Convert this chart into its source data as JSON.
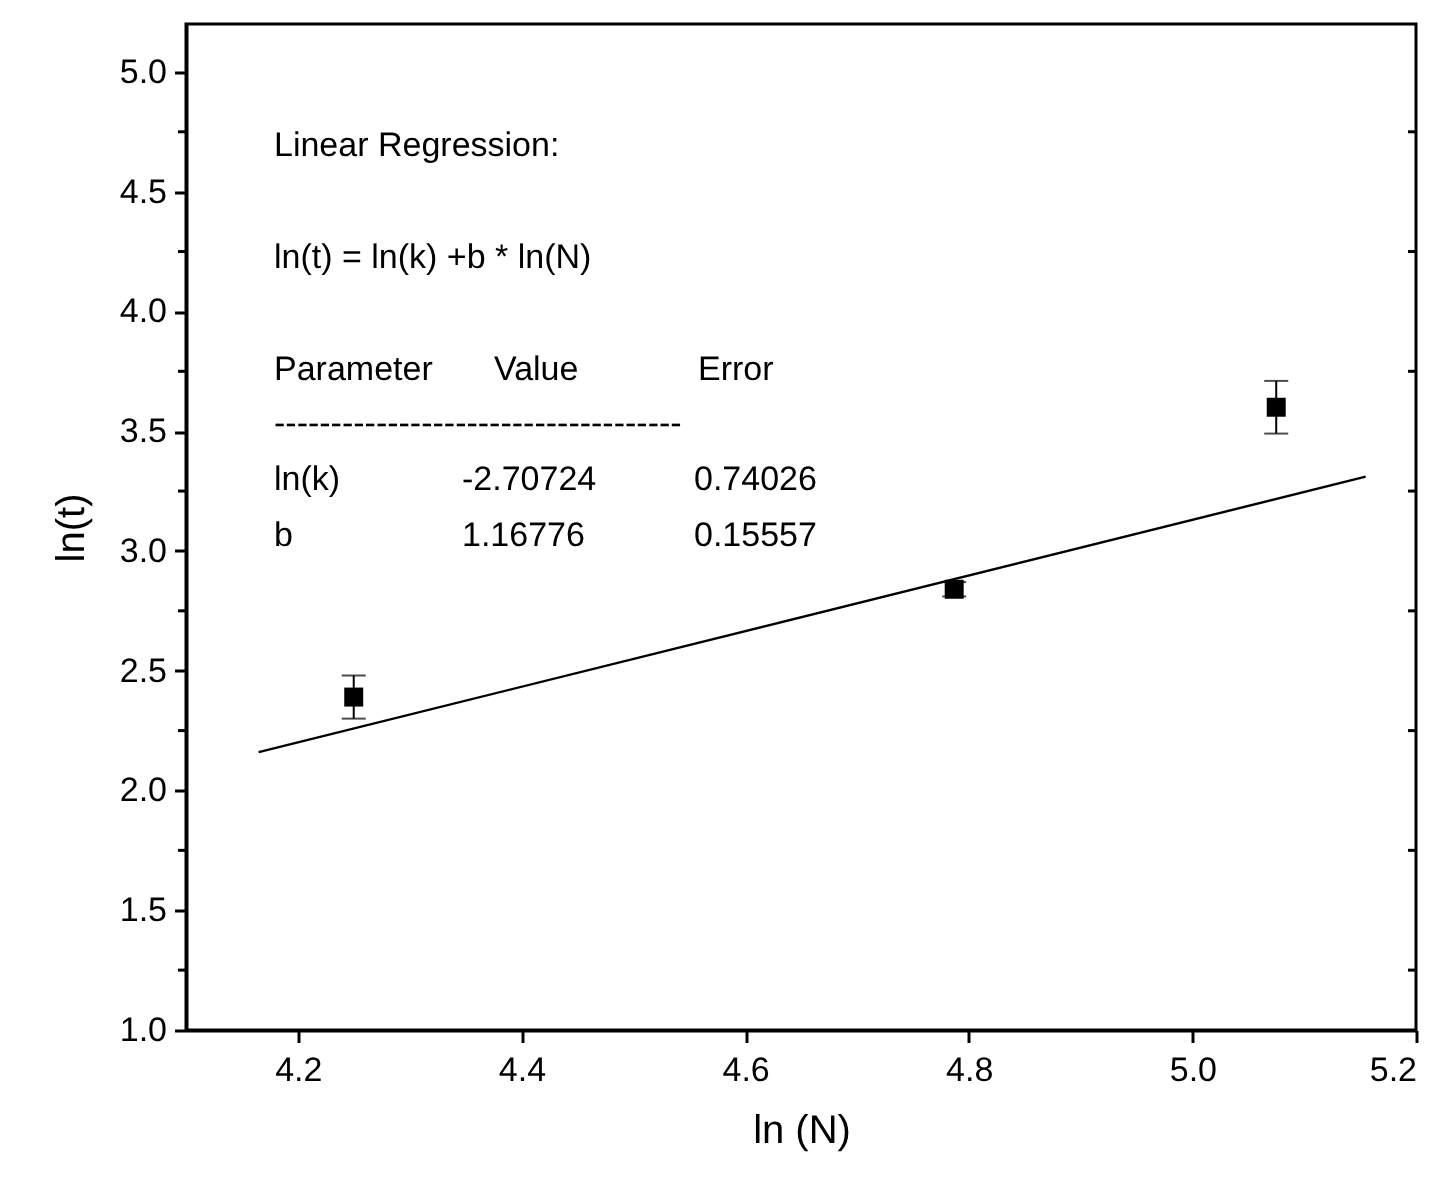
{
  "chart_data": {
    "type": "scatter",
    "xlabel": "ln (N)",
    "ylabel": "ln(t)",
    "xlim": [
      4.1,
      5.2
    ],
    "ylim": [
      1.0,
      5.2
    ],
    "xticks": [
      {
        "value": 4.2,
        "label": "4.2"
      },
      {
        "value": 4.4,
        "label": "4.4"
      },
      {
        "value": 4.6,
        "label": "4.6"
      },
      {
        "value": 4.8,
        "label": "4.8"
      },
      {
        "value": 5.0,
        "label": "5.0"
      },
      {
        "value": 5.2,
        "label": "5.2"
      }
    ],
    "yticks": [
      {
        "value": 1.0,
        "label": "1.0"
      },
      {
        "value": 1.25,
        "label": null
      },
      {
        "value": 1.5,
        "label": "1.5"
      },
      {
        "value": 1.75,
        "label": null
      },
      {
        "value": 2.0,
        "label": "2.0"
      },
      {
        "value": 2.25,
        "label": null
      },
      {
        "value": 2.5,
        "label": "2.5"
      },
      {
        "value": 2.75,
        "label": null
      },
      {
        "value": 3.0,
        "label": "3.0"
      },
      {
        "value": 3.25,
        "label": null
      },
      {
        "value": 3.5,
        "label": "3.5"
      },
      {
        "value": 3.75,
        "label": null
      },
      {
        "value": 4.0,
        "label": "4.0"
      },
      {
        "value": 4.25,
        "label": null
      },
      {
        "value": 4.5,
        "label": "4.5"
      },
      {
        "value": 4.75,
        "label": null
      },
      {
        "value": 5.0,
        "label": "5.0"
      }
    ],
    "grid": false,
    "series": [
      {
        "marker": "square",
        "color": "#000000",
        "x": [
          4.25,
          4.787,
          5.075
        ],
        "values": [
          2.39,
          2.84,
          3.6
        ],
        "errors": [
          0.09,
          0.03,
          0.11
        ]
      },
      {
        "type": "line",
        "color": "#000000",
        "line_style": "solid",
        "x": [
          4.165,
          5.155
        ],
        "values": [
          2.16,
          3.31
        ]
      }
    ],
    "annotations": [
      "Linear Regression:",
      "ln(t) = ln(k) +b * ln(N)",
      "Parameter",
      "Value",
      "Error",
      "------------------------------------",
      "ln(k)",
      "-2.70724",
      "0.74026",
      "b",
      "1.16776",
      "0.15557"
    ]
  }
}
